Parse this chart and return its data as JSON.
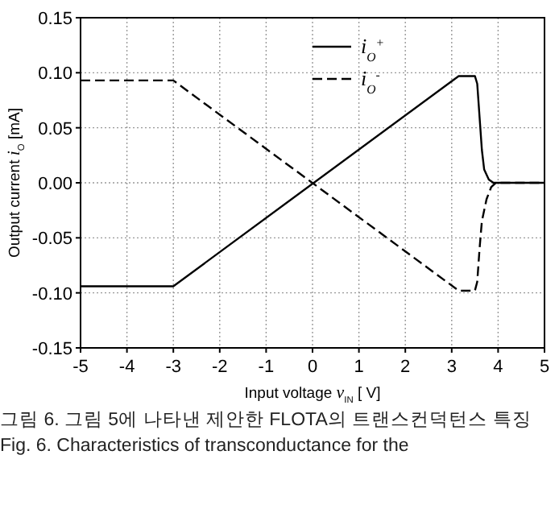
{
  "chart_data": {
    "type": "line",
    "xlabel": "Input voltage *v*$_{IN}$  [ V]",
    "ylabel": "Output current *i*$_{O}$  [mA]",
    "xlim": [
      -5,
      5
    ],
    "ylim": [
      -0.15,
      0.15
    ],
    "xticks": [
      -5,
      -4,
      -3,
      -2,
      -1,
      0,
      1,
      2,
      3,
      4,
      5
    ],
    "yticks": [
      {
        "value": 0.15,
        "label": "0.15"
      },
      {
        "value": 0.1,
        "label": "0.10"
      },
      {
        "value": 0.05,
        "label": "0.05"
      },
      {
        "value": 0,
        "label": "0.00"
      },
      {
        "value": -0.05,
        "label": "-0.05"
      },
      {
        "value": -0.1,
        "label": "-0.10"
      },
      {
        "value": -0.15,
        "label": "-0.15"
      }
    ],
    "grid": true,
    "legend": "top",
    "marker": "none",
    "series": [
      {
        "name": "i$_{O}$$^{+}$",
        "color": "#000000",
        "line_style": "solid",
        "x": [
          -5,
          -3,
          3.15,
          3.5,
          3.55,
          3.6,
          3.65,
          3.7,
          3.8,
          3.9,
          5
        ],
        "values": [
          -0.094,
          -0.094,
          0.097,
          0.097,
          0.09,
          0.06,
          0.03,
          0.012,
          0.003,
          0,
          0
        ]
      },
      {
        "name": "i$_{O}$$^{-}$",
        "color": "#000000",
        "line_style": "dashed",
        "x": [
          -5,
          -3,
          3.15,
          3.5,
          3.55,
          3.6,
          3.65,
          3.75,
          3.85,
          3.95,
          5
        ],
        "values": [
          0.093,
          0.093,
          -0.098,
          -0.098,
          -0.09,
          -0.06,
          -0.035,
          -0.015,
          -0.004,
          0,
          0
        ]
      }
    ],
    "annotations": [
      "그림 6.  그림 5에 나타낸 제안한 FLOTA의 트랜스컨덕턴스 특징",
      "Fig.  6.  Characteristics of transconductance for the"
    ]
  }
}
